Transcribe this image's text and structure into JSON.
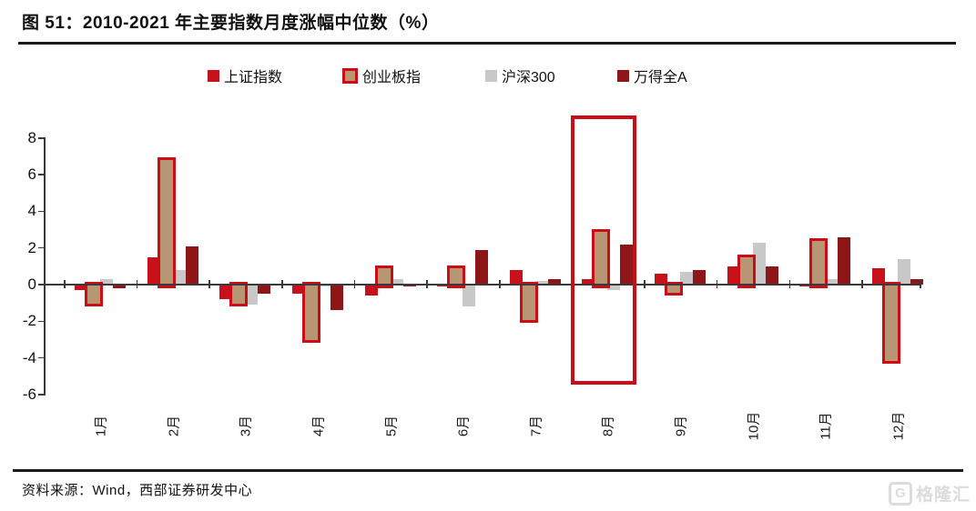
{
  "header": {
    "title": "图 51：2010-2021 年主要指数月度涨幅中位数（%）"
  },
  "footer": {
    "source": "资料来源：Wind，西部证券研发中心",
    "watermark": "格隆汇",
    "watermark_icon": "G"
  },
  "colors": {
    "shanghai_red": "#c9111c",
    "chinext_fill": "#b99673",
    "chinext_border": "#cc0d15",
    "hs300_gray": "#c8c8c8",
    "windall_maroon": "#8e1518",
    "highlight_red": "#cc0d15",
    "axis": "#3a3a3a"
  },
  "chart_data": {
    "type": "bar",
    "title": "2010-2021 年主要指数月度涨幅中位数（%）",
    "categories": [
      "1月",
      "2月",
      "3月",
      "4月",
      "5月",
      "6月",
      "7月",
      "8月",
      "9月",
      "10月",
      "11月",
      "12月"
    ],
    "series": [
      {
        "name": "上证指数",
        "color": "#c9111c",
        "values": [
          -0.3,
          1.5,
          -0.8,
          -0.5,
          -0.6,
          -0.1,
          0.8,
          0.3,
          0.6,
          1.0,
          -0.1,
          0.9
        ]
      },
      {
        "name": "创业板指",
        "color": "#b99673",
        "border_color": "#cc0d15",
        "values": [
          -1.0,
          6.8,
          -1.0,
          -3.0,
          0.9,
          0.9,
          -1.9,
          2.9,
          -0.4,
          1.5,
          2.4,
          -4.1
        ]
      },
      {
        "name": "沪深300",
        "color": "#c8c8c8",
        "values": [
          0.3,
          0.8,
          -1.1,
          -0.1,
          0.3,
          -1.2,
          0.2,
          -0.3,
          0.7,
          2.3,
          0.3,
          1.4
        ]
      },
      {
        "name": "万得全A",
        "color": "#8e1518",
        "values": [
          -0.2,
          2.1,
          -0.5,
          -1.4,
          -0.1,
          1.9,
          0.3,
          2.2,
          0.8,
          1.0,
          2.6,
          0.3
        ]
      }
    ],
    "ylabel": "",
    "xlabel": "",
    "yticks": [
      8,
      6,
      4,
      2,
      0,
      -2,
      -4,
      -6
    ],
    "ylim": [
      -6,
      8
    ],
    "grid": false,
    "legend_position": "top",
    "highlight": {
      "category": "8月",
      "style": "red-outline-box"
    }
  }
}
